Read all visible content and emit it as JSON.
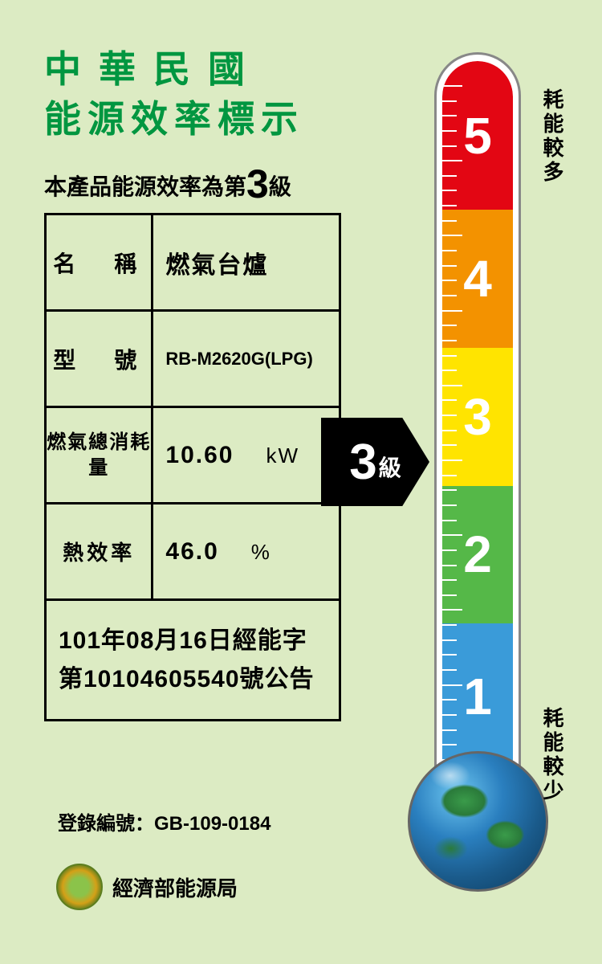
{
  "title": {
    "line1": "中華民國",
    "line2": "能源效率標示"
  },
  "subtitle": {
    "prefix": "本產品能源效率為第",
    "level": "3",
    "suffix": "級"
  },
  "table": {
    "name_label": "名　稱",
    "name_value": "燃氣台爐",
    "model_label": "型　號",
    "model_value": "RB-M2620G(LPG)",
    "consumption_label": "燃氣總消耗量",
    "consumption_value": "10.60",
    "consumption_unit": "kW",
    "efficiency_label": "熱效率",
    "efficiency_value": "46.0",
    "efficiency_unit": "%",
    "announcement": "101年08月16日經能字第10104605540號公告"
  },
  "registration": {
    "label": "登錄編號：",
    "value": "GB-109-0184"
  },
  "bureau": "經濟部能源局",
  "arrow": {
    "level": "3",
    "suffix": "級"
  },
  "thermometer": {
    "bands": [
      {
        "level": "5",
        "color": "#e30613"
      },
      {
        "level": "4",
        "color": "#f39200"
      },
      {
        "level": "3",
        "color": "#ffe400"
      },
      {
        "level": "2",
        "color": "#55b848"
      },
      {
        "level": "1",
        "color": "#3a9bd9"
      }
    ],
    "label_more": "耗能較多",
    "label_less": "耗能較少"
  },
  "colors": {
    "background": "#dcebc3",
    "title": "#009640",
    "text": "#000000"
  }
}
